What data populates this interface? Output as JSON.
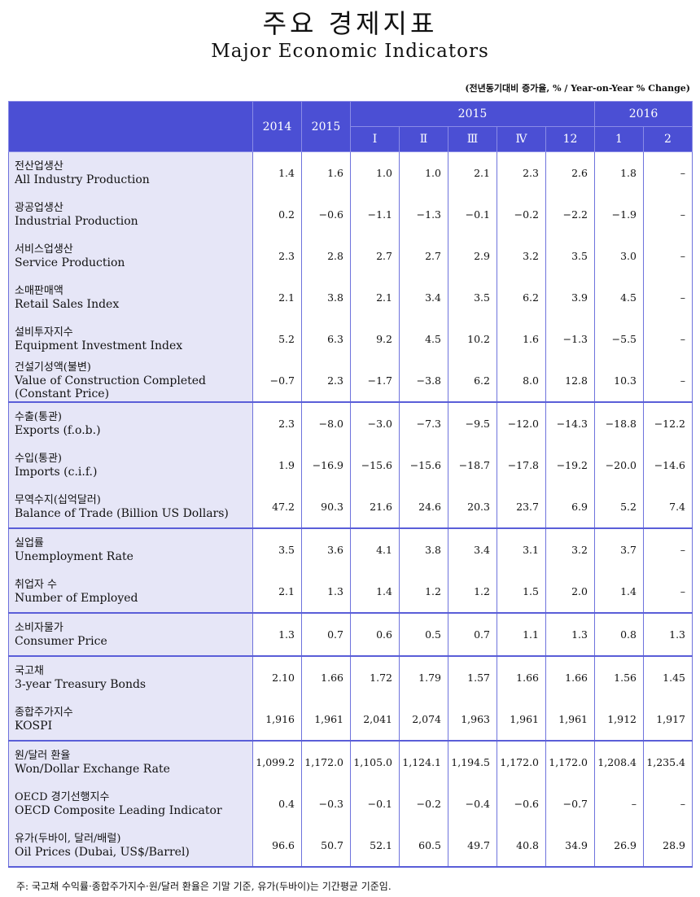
{
  "header": {
    "title_ko": "주요 경제지표",
    "title_en": "Major Economic Indicators",
    "note": "(전년동기대비 증가율, % / Year-on-Year % Change)"
  },
  "table": {
    "years": [
      "2014",
      "2015"
    ],
    "groups": [
      {
        "label": "2015",
        "columns": [
          "Ⅰ",
          "Ⅱ",
          "Ⅲ",
          "Ⅳ",
          "12"
        ]
      },
      {
        "label": "2016",
        "columns": [
          "1",
          "2"
        ]
      }
    ],
    "rows": [
      {
        "ko": "전산업생산",
        "en": "All Industry Production",
        "values": [
          "1.4",
          "1.6",
          "1.0",
          "1.0",
          "2.1",
          "2.3",
          "2.6",
          "1.8",
          "–"
        ]
      },
      {
        "ko": "광공업생산",
        "en": "Industrial Production",
        "values": [
          "0.2",
          "−0.6",
          "−1.1",
          "−1.3",
          "−0.1",
          "−0.2",
          "−2.2",
          "−1.9",
          "–"
        ]
      },
      {
        "ko": "서비스업생산",
        "en": "Service Production",
        "values": [
          "2.3",
          "2.8",
          "2.7",
          "2.7",
          "2.9",
          "3.2",
          "3.5",
          "3.0",
          "–"
        ]
      },
      {
        "ko": "소매판매액",
        "en": "Retail Sales Index",
        "values": [
          "2.1",
          "3.8",
          "2.1",
          "3.4",
          "3.5",
          "6.2",
          "3.9",
          "4.5",
          "–"
        ]
      },
      {
        "ko": "설비투자지수",
        "en": "Equipment Investment Index",
        "values": [
          "5.2",
          "6.3",
          "9.2",
          "4.5",
          "10.2",
          "1.6",
          "−1.3",
          "−5.5",
          "–"
        ]
      },
      {
        "ko": "건설기성액(불변)",
        "en": "Value of Construction Completed",
        "en2": "(Constant Price)",
        "values": [
          "−0.7",
          "2.3",
          "−1.7",
          "−3.8",
          "6.2",
          "8.0",
          "12.8",
          "10.3",
          "–"
        ]
      },
      {
        "ko": "수출(통관)",
        "en": "Exports (f.o.b.)",
        "values": [
          "2.3",
          "−8.0",
          "−3.0",
          "−7.3",
          "−9.5",
          "−12.0",
          "−14.3",
          "−18.8",
          "−12.2"
        ]
      },
      {
        "ko": "수입(통관)",
        "en": "Imports (c.i.f.)",
        "values": [
          "1.9",
          "−16.9",
          "−15.6",
          "−15.6",
          "−18.7",
          "−17.8",
          "−19.2",
          "−20.0",
          "−14.6"
        ]
      },
      {
        "ko": "무역수지(십억달러)",
        "en": "Balance of Trade (Billion US Dollars)",
        "values": [
          "47.2",
          "90.3",
          "21.6",
          "24.6",
          "20.3",
          "23.7",
          "6.9",
          "5.2",
          "7.4"
        ]
      },
      {
        "ko": "실업률",
        "en": "Unemployment Rate",
        "values": [
          "3.5",
          "3.6",
          "4.1",
          "3.8",
          "3.4",
          "3.1",
          "3.2",
          "3.7",
          "–"
        ]
      },
      {
        "ko": "취업자 수",
        "en": "Number of Employed",
        "values": [
          "2.1",
          "1.3",
          "1.4",
          "1.2",
          "1.2",
          "1.5",
          "2.0",
          "1.4",
          "–"
        ]
      },
      {
        "ko": "소비자물가",
        "en": "Consumer Price",
        "values": [
          "1.3",
          "0.7",
          "0.6",
          "0.5",
          "0.7",
          "1.1",
          "1.3",
          "0.8",
          "1.3"
        ]
      },
      {
        "ko": "국고채",
        "en": "3-year Treasury Bonds",
        "values": [
          "2.10",
          "1.66",
          "1.72",
          "1.79",
          "1.57",
          "1.66",
          "1.66",
          "1.56",
          "1.45"
        ]
      },
      {
        "ko": "종합주가지수",
        "en": "KOSPI",
        "values": [
          "1,916",
          "1,961",
          "2,041",
          "2,074",
          "1,963",
          "1,961",
          "1,961",
          "1,912",
          "1,917"
        ]
      },
      {
        "ko": "원/달러 환율",
        "en": "Won/Dollar Exchange Rate",
        "values": [
          "1,099.2",
          "1,172.0",
          "1,105.0",
          "1,124.1",
          "1,194.5",
          "1,172.0",
          "1,172.0",
          "1,208.4",
          "1,235.4"
        ]
      },
      {
        "ko": "OECD 경기선행지수",
        "en": "OECD Composite Leading Indicator",
        "values": [
          "0.4",
          "−0.3",
          "−0.1",
          "−0.2",
          "−0.4",
          "−0.6",
          "−0.7",
          "–",
          "–"
        ]
      },
      {
        "ko": "유가(두바이, 달러/배럴)",
        "en": "Oil Prices (Dubai, US$/Barrel)",
        "values": [
          "96.6",
          "50.7",
          "52.1",
          "60.5",
          "49.7",
          "40.8",
          "34.9",
          "26.9",
          "28.9"
        ]
      }
    ]
  },
  "footnote": "주: 국고채 수익률·종합주가지수·원/달러 환율은 기말 기준, 유가(두바이)는 기간평균 기준임."
}
